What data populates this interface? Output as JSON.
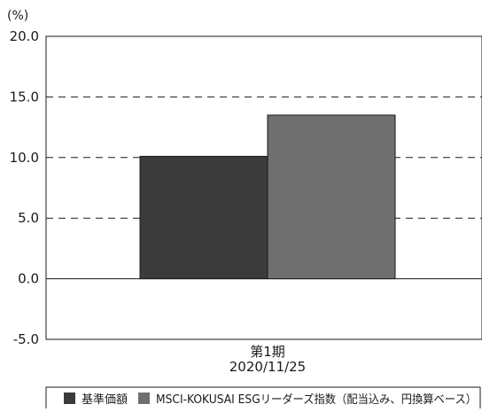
{
  "chart_data": {
    "type": "bar",
    "y_unit": "(%)",
    "ylim": [
      -5.0,
      20.0
    ],
    "y_ticks": [
      -5.0,
      0.0,
      5.0,
      10.0,
      15.0,
      20.0
    ],
    "y_tick_labels": [
      "-5.0",
      "0.0",
      "5.0",
      "10.0",
      "15.0",
      "20.0"
    ],
    "gridlines": "dashed",
    "categories": [
      {
        "line1": "第1期",
        "line2": "2020/11/25"
      }
    ],
    "series": [
      {
        "name": "基準価額",
        "values": [
          10.1
        ],
        "color": "#3b3b3b"
      },
      {
        "name": "MSCI-KOKUSAI ESGリーダーズ指数（配当込み、円換算ベース）",
        "values": [
          13.5
        ],
        "color": "#6f6f6f"
      }
    ],
    "legend_position": "bottom"
  }
}
